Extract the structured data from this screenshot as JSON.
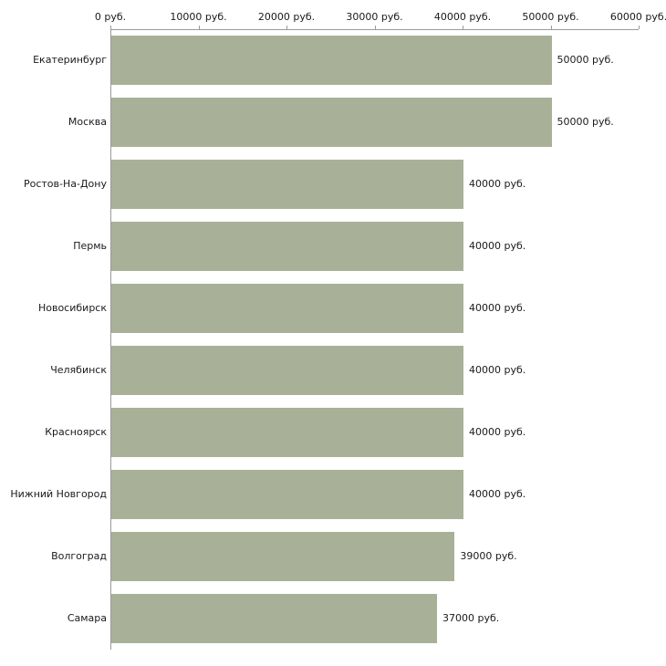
{
  "chart_data": {
    "type": "bar",
    "orientation": "horizontal",
    "title": "",
    "xlabel": "",
    "ylabel": "",
    "categories": [
      "Екатеринбург",
      "Москва",
      "Ростов-На-Дону",
      "Пермь",
      "Новосибирск",
      "Челябинск",
      "Красноярск",
      "Нижний Новгород",
      "Волгоград",
      "Самара"
    ],
    "values": [
      50000,
      50000,
      40000,
      40000,
      40000,
      40000,
      40000,
      40000,
      39000,
      37000
    ],
    "value_labels": [
      "50000 руб.",
      "50000 руб.",
      "40000 руб.",
      "40000 руб.",
      "40000 руб.",
      "40000 руб.",
      "40000 руб.",
      "40000 руб.",
      "39000 руб.",
      "37000 руб."
    ],
    "x_ticks": [
      "0 руб.",
      "10000 руб.",
      "20000 руб.",
      "30000 руб.",
      "40000 руб.",
      "50000 руб.",
      "60000 руб."
    ],
    "x_tick_values": [
      0,
      10000,
      20000,
      30000,
      40000,
      50000,
      60000
    ],
    "xlim": [
      0,
      60000
    ],
    "grid": false,
    "legend": "none",
    "axis_position": "top",
    "colors": {
      "bar": "#a8b197",
      "axis": "#9a9a9a",
      "text": "#1a1a1a",
      "background": "#ffffff"
    }
  }
}
